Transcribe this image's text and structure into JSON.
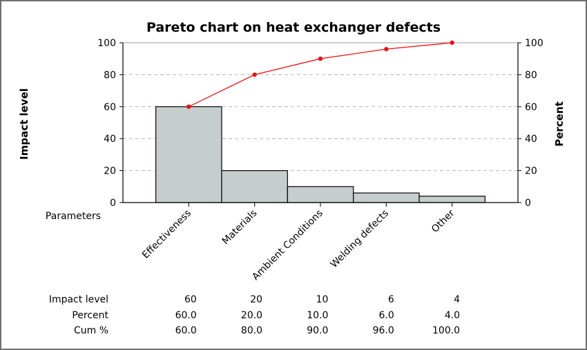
{
  "chart_data": {
    "type": "bar",
    "title": "Pareto chart on heat exchanger defects",
    "ylabel": "Impact level",
    "y2label": "Percent",
    "xlabel": "Parameters",
    "categories": [
      "Effectiveness",
      "Materials",
      "Ambient Conditions",
      "Welding defects",
      "Other"
    ],
    "series": [
      {
        "values": [
          60,
          20,
          10,
          6,
          4
        ]
      },
      {
        "values": [
          60,
          80,
          90,
          96,
          100
        ]
      }
    ],
    "ylim": [
      0,
      100
    ],
    "y2lim": [
      0,
      100
    ],
    "yticks": [
      0,
      20,
      40,
      60,
      80,
      100
    ],
    "y2ticks": [
      0,
      20,
      40,
      60,
      80,
      100
    ],
    "grid": "horizontal dashed",
    "colors": {
      "bar_fill": "#c5cecd",
      "bar_stroke": "#000000",
      "line": "#ee1111",
      "grid": "#b4b4b4"
    },
    "table": {
      "row_labels": [
        "Impact level",
        "Percent",
        "Cum %"
      ],
      "rows": [
        [
          "60",
          "20",
          "10",
          "6",
          "4"
        ],
        [
          "60.0",
          "20.0",
          "10.0",
          "6.0",
          "4.0"
        ],
        [
          "60.0",
          "80.0",
          "90.0",
          "96.0",
          "100.0"
        ]
      ]
    }
  }
}
